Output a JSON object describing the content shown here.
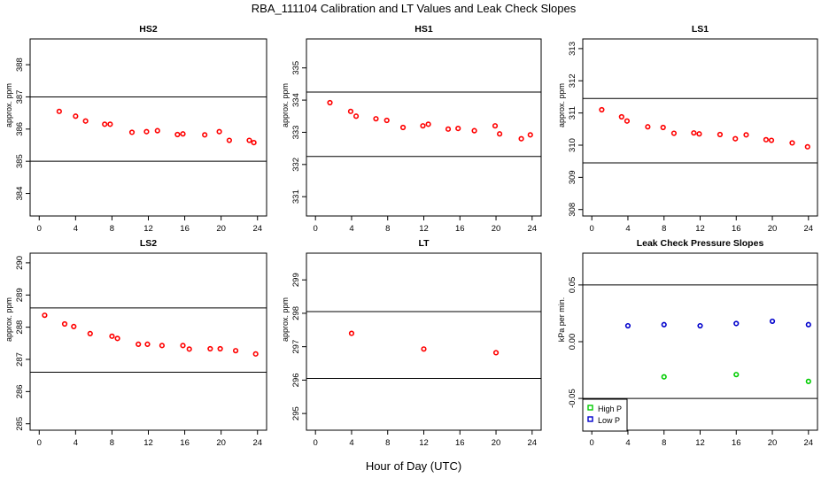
{
  "page": {
    "title": "RBA_111104  Calibration and LT Values and Leak Check Slopes",
    "xlabel": "Hour of Day (UTC)"
  },
  "chart_data": [
    {
      "type": "scatter",
      "title": "HS2",
      "ylabel": "approx. ppm",
      "xlim": [
        -1,
        25
      ],
      "ylim": [
        383.3,
        388.8
      ],
      "xticks": [
        0,
        4,
        8,
        12,
        16,
        20,
        24
      ],
      "yticks": [
        384,
        385,
        386,
        387,
        388
      ],
      "hlines": [
        387,
        385
      ],
      "series": [
        {
          "color": "#ff0000",
          "marker": "circle",
          "x": [
            2.2,
            4.0,
            5.1,
            7.2,
            7.8,
            10.2,
            11.8,
            13.0,
            15.2,
            15.8,
            18.2,
            19.8,
            20.9,
            23.1,
            23.6
          ],
          "y": [
            386.55,
            386.4,
            386.25,
            386.15,
            386.15,
            385.9,
            385.92,
            385.95,
            385.83,
            385.85,
            385.82,
            385.92,
            385.65,
            385.65,
            385.58
          ]
        }
      ]
    },
    {
      "type": "scatter",
      "title": "HS1",
      "ylabel": "approx. ppm",
      "xlim": [
        -1,
        25
      ],
      "ylim": [
        330.4,
        335.9
      ],
      "xticks": [
        0,
        4,
        8,
        12,
        16,
        20,
        24
      ],
      "yticks": [
        331,
        332,
        333,
        334,
        335
      ],
      "hlines": [
        334.25,
        332.25
      ],
      "series": [
        {
          "color": "#ff0000",
          "marker": "circle",
          "x": [
            1.6,
            3.9,
            4.5,
            6.7,
            7.9,
            9.7,
            11.9,
            12.5,
            14.7,
            15.8,
            17.6,
            19.9,
            20.4,
            22.8,
            23.8
          ],
          "y": [
            333.92,
            333.65,
            333.5,
            333.42,
            333.37,
            333.15,
            333.2,
            333.25,
            333.1,
            333.12,
            333.05,
            333.2,
            332.95,
            332.8,
            332.92
          ]
        }
      ]
    },
    {
      "type": "scatter",
      "title": "LS1",
      "ylabel": "approx. ppm",
      "xlim": [
        -1,
        25
      ],
      "ylim": [
        307.8,
        313.3
      ],
      "xticks": [
        0,
        4,
        8,
        12,
        16,
        20,
        24
      ],
      "yticks": [
        308,
        309,
        310,
        311,
        312,
        313
      ],
      "hlines": [
        311.45,
        309.45
      ],
      "series": [
        {
          "color": "#ff0000",
          "marker": "circle",
          "x": [
            1.1,
            3.3,
            3.9,
            6.2,
            7.9,
            9.1,
            11.3,
            11.9,
            14.2,
            15.9,
            17.1,
            19.3,
            19.9,
            22.2,
            23.9
          ],
          "y": [
            311.1,
            310.88,
            310.75,
            310.57,
            310.55,
            310.37,
            310.38,
            310.35,
            310.33,
            310.2,
            310.32,
            310.17,
            310.15,
            310.07,
            309.95
          ]
        }
      ]
    },
    {
      "type": "scatter",
      "title": "LS2",
      "ylabel": "approx. ppm",
      "xlim": [
        -1,
        25
      ],
      "ylim": [
        284.8,
        290.3
      ],
      "xticks": [
        0,
        4,
        8,
        12,
        16,
        20,
        24
      ],
      "yticks": [
        285,
        286,
        287,
        288,
        289,
        290
      ],
      "hlines": [
        288.6,
        286.6
      ],
      "series": [
        {
          "color": "#ff0000",
          "marker": "circle",
          "x": [
            0.6,
            2.8,
            3.8,
            5.6,
            8.0,
            8.6,
            10.9,
            11.9,
            13.5,
            15.8,
            16.5,
            18.8,
            19.9,
            21.6,
            23.8
          ],
          "y": [
            288.37,
            288.1,
            288.02,
            287.8,
            287.72,
            287.65,
            287.47,
            287.47,
            287.43,
            287.43,
            287.32,
            287.33,
            287.33,
            287.27,
            287.17
          ]
        }
      ]
    },
    {
      "type": "scatter",
      "title": "LT",
      "ylabel": "approx. ppm",
      "xlim": [
        -1,
        25
      ],
      "ylim": [
        294.5,
        299.8
      ],
      "xticks": [
        0,
        4,
        8,
        12,
        16,
        20,
        24
      ],
      "yticks": [
        295,
        296,
        297,
        298,
        299
      ],
      "hlines": [
        298.05,
        296.05
      ],
      "series": [
        {
          "color": "#ff0000",
          "marker": "circle",
          "x": [
            4.0,
            12.0,
            20.0
          ],
          "y": [
            297.4,
            296.93,
            296.82
          ]
        }
      ]
    },
    {
      "type": "scatter",
      "title": "Leak Check Pressure Slopes",
      "ylabel": "kPa per min.",
      "xlim": [
        -1,
        25
      ],
      "ylim": [
        -0.078,
        0.078
      ],
      "xticks": [
        0,
        4,
        8,
        12,
        16,
        20,
        24
      ],
      "yticks": [
        -0.05,
        0.0,
        0.05
      ],
      "ytick_labels": [
        "-0.05",
        "0.00",
        "0.05"
      ],
      "hlines": [
        0.05,
        -0.05
      ],
      "legend": "bottom-left",
      "series": [
        {
          "name": "High P",
          "color": "#00cc00",
          "marker": "circle",
          "x": [
            8,
            16,
            24
          ],
          "y": [
            -0.031,
            -0.029,
            -0.035
          ]
        },
        {
          "name": "Low P",
          "color": "#0000cc",
          "marker": "circle",
          "x": [
            4,
            8,
            12,
            16,
            20,
            24
          ],
          "y": [
            0.014,
            0.015,
            0.014,
            0.016,
            0.018,
            0.015
          ]
        }
      ]
    }
  ]
}
